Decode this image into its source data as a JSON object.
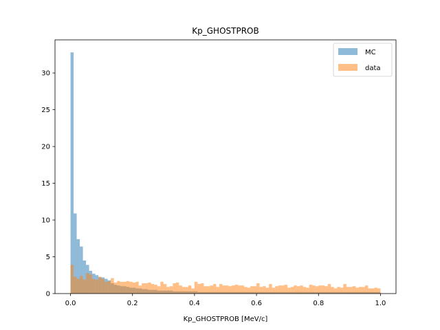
{
  "chart_data": {
    "type": "bar",
    "title": "Kp_GHOSTPROB",
    "xlabel": "Kp_GHOSTPROB [MeV/c]",
    "ylabel": "",
    "xlim": [
      -0.05,
      1.05
    ],
    "ylim": [
      0,
      34.5
    ],
    "xticks": [
      0.0,
      0.2,
      0.4,
      0.6,
      0.8,
      1.0
    ],
    "xtick_labels": [
      "0.0",
      "0.2",
      "0.4",
      "0.6",
      "0.8",
      "1.0"
    ],
    "yticks": [
      0,
      5,
      10,
      15,
      20,
      25,
      30
    ],
    "ytick_labels": [
      "0",
      "5",
      "10",
      "15",
      "20",
      "25",
      "30"
    ],
    "bins": {
      "start": 0.0,
      "end": 1.0,
      "count": 100
    },
    "legend_position": "top-right",
    "grid": false,
    "series": [
      {
        "name": "MC",
        "color": "#1f77b4",
        "alpha": 0.5,
        "values": [
          32.8,
          10.9,
          7.4,
          6.4,
          4.5,
          3.9,
          3.1,
          2.7,
          2.5,
          2.2,
          2.2,
          2.0,
          1.8,
          1.4,
          1.2,
          1.1,
          1.0,
          1.0,
          0.9,
          0.8,
          0.8,
          0.7,
          0.7,
          0.6,
          0.6,
          0.5,
          0.5,
          0.5,
          0.4,
          0.4,
          0.4,
          0.4,
          0.4,
          0.3,
          0.3,
          0.3,
          0.3,
          0.3,
          0.3,
          0.3,
          0.3,
          0.2,
          0.2,
          0.2,
          0.2,
          0.2,
          0.2,
          0.2,
          0.2,
          0.2,
          0.2,
          0.2,
          0.2,
          0.2,
          0.2,
          0.2,
          0.2,
          0.2,
          0.2,
          0.2,
          0.2,
          0.2,
          0.2,
          0.2,
          0.2,
          0.2,
          0.2,
          0.2,
          0.2,
          0.2,
          0.2,
          0.2,
          0.2,
          0.2,
          0.2,
          0.2,
          0.2,
          0.2,
          0.2,
          0.2,
          0.2,
          0.2,
          0.2,
          0.2,
          0.2,
          0.2,
          0.2,
          0.2,
          0.2,
          0.2,
          0.2,
          0.2,
          0.2,
          0.2,
          0.2,
          0.2,
          0.2,
          0.2,
          0.2,
          0.2
        ]
      },
      {
        "name": "data",
        "color": "#ff7f0e",
        "alpha": 0.5,
        "values": [
          3.9,
          2.3,
          2.0,
          2.4,
          1.9,
          2.8,
          2.6,
          2.0,
          1.9,
          2.3,
          2.0,
          1.6,
          1.7,
          2.1,
          1.5,
          1.7,
          1.6,
          1.6,
          1.7,
          1.6,
          1.5,
          1.6,
          1.1,
          1.4,
          1.4,
          1.5,
          1.3,
          1.2,
          1.0,
          1.6,
          1.3,
          0.9,
          1.0,
          1.4,
          1.5,
          1.1,
          0.9,
          0.9,
          1.1,
          0.7,
          1.6,
          1.3,
          1.4,
          1.0,
          1.0,
          1.1,
          1.3,
          0.9,
          1.3,
          1.1,
          1.1,
          1.0,
          1.1,
          1.2,
          1.1,
          1.1,
          0.9,
          0.8,
          1.0,
          1.0,
          1.4,
          0.9,
          1.0,
          0.8,
          1.3,
          0.8,
          1.0,
          1.1,
          1.1,
          1.2,
          0.8,
          0.9,
          1.1,
          1.0,
          1.1,
          0.9,
          0.8,
          1.2,
          1.1,
          1.0,
          1.1,
          1.1,
          1.0,
          1.3,
          0.9,
          0.7,
          0.9,
          0.8,
          1.3,
          0.9,
          0.9,
          1.0,
          0.8,
          0.9,
          0.9,
          1.1,
          0.7,
          0.7,
          0.8,
          0.7
        ]
      }
    ]
  }
}
